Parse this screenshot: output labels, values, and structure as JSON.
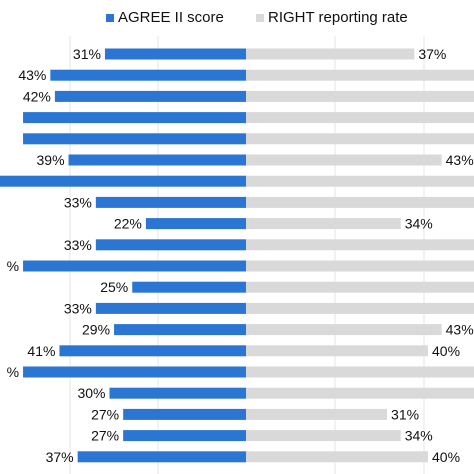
{
  "chart_data": {
    "type": "bar",
    "orientation": "horizontal-diverging",
    "title": "",
    "xlabel": "",
    "ylabel": "",
    "legend": {
      "placement": "top"
    },
    "grid": true,
    "series": [
      {
        "name": "AGREE II score",
        "color": "#2a76d2",
        "direction": "left",
        "values": [
          31,
          43,
          42,
          49,
          49,
          39,
          55,
          33,
          22,
          33,
          49,
          25,
          33,
          29,
          41,
          49,
          30,
          27,
          27,
          37
        ],
        "labels": [
          "31%",
          "43%",
          "42%",
          "",
          "",
          "39%",
          "",
          "33%",
          "22%",
          "33%",
          "%",
          "25%",
          "33%",
          "29%",
          "41%",
          "%",
          "30%",
          "27%",
          "27%",
          "37%"
        ]
      },
      {
        "name": "RIGHT reporting rate",
        "color": "#d9d9d9",
        "direction": "right",
        "values": [
          37,
          55,
          55,
          55,
          55,
          43,
          55,
          55,
          34,
          55,
          55,
          55,
          55,
          43,
          40,
          55,
          55,
          31,
          34,
          40
        ],
        "labels": [
          "37%",
          "",
          "",
          "",
          "",
          "43%",
          "",
          "",
          "34%",
          "",
          "",
          "",
          "",
          "43%",
          "40%",
          "",
          "",
          "31%",
          "34%",
          "40%"
        ]
      }
    ],
    "xlim": [
      0,
      55
    ]
  }
}
